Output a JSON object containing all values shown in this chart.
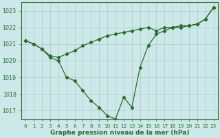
{
  "x": [
    0,
    1,
    2,
    3,
    4,
    5,
    6,
    7,
    8,
    9,
    10,
    11,
    12,
    13,
    14,
    15,
    16,
    17,
    18,
    19,
    20,
    21,
    22,
    23
  ],
  "line1": [
    1021.2,
    1021.0,
    1020.7,
    1020.3,
    1020.2,
    1020.4,
    1020.6,
    1020.9,
    1021.1,
    1021.3,
    1021.5,
    1021.6,
    1021.7,
    1021.8,
    1021.9,
    1022.0,
    1021.8,
    1022.0,
    1022.0,
    1022.1,
    1022.1,
    1022.2,
    1022.5,
    1023.2
  ],
  "line2": [
    1021.2,
    1021.0,
    1020.7,
    1020.2,
    1020.0,
    1019.0,
    1018.8,
    1018.2,
    1017.6,
    1017.2,
    1016.7,
    1016.5,
    1017.8,
    1017.2,
    1019.6,
    1020.9,
    1021.6,
    1021.8,
    1022.0,
    1022.0,
    1022.1,
    1022.2,
    1022.5,
    1023.2
  ],
  "ylim": [
    1016.5,
    1023.5
  ],
  "yticks": [
    1017,
    1018,
    1019,
    1020,
    1021,
    1022,
    1023
  ],
  "xlabel": "Graphe pression niveau de la mer (hPa)",
  "line_color": "#2d6a2d",
  "bg_color": "#cce8e8",
  "grid_color": "#aacccc",
  "tick_color": "#2d6a2d",
  "marker": "D",
  "markersize": 2.2,
  "linewidth": 0.9,
  "xlabel_fontsize": 6.5,
  "xtick_fontsize": 5.2,
  "ytick_fontsize": 5.8
}
